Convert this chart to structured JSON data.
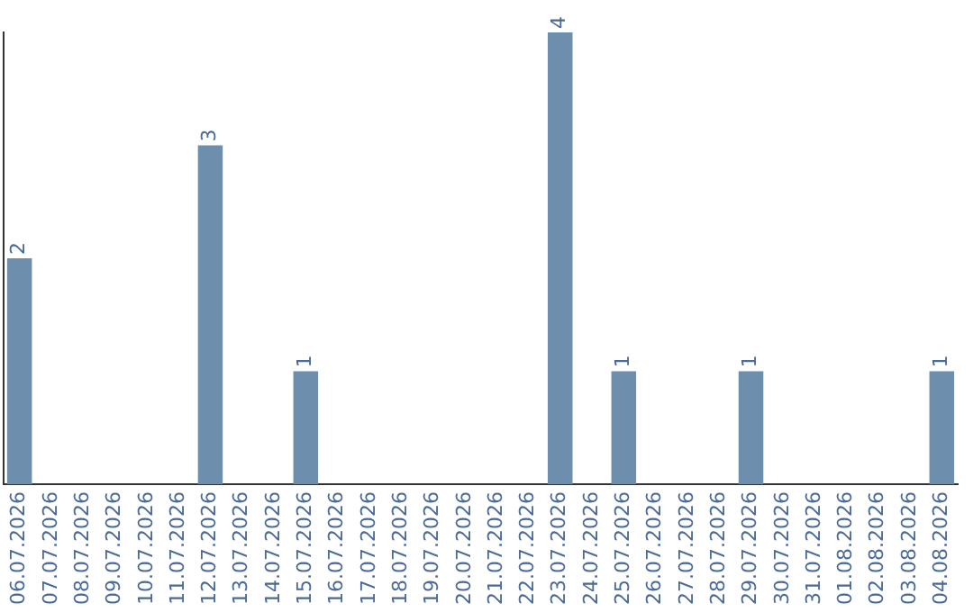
{
  "chart_data": {
    "type": "bar",
    "categories": [
      "06.07.2026",
      "07.07.2026",
      "08.07.2026",
      "09.07.2026",
      "10.07.2026",
      "11.07.2026",
      "12.07.2026",
      "13.07.2026",
      "14.07.2026",
      "15.07.2026",
      "16.07.2026",
      "17.07.2026",
      "18.07.2026",
      "19.07.2026",
      "20.07.2026",
      "21.07.2026",
      "22.07.2026",
      "23.07.2026",
      "24.07.2026",
      "25.07.2026",
      "26.07.2026",
      "27.07.2026",
      "28.07.2026",
      "29.07.2026",
      "30.07.2026",
      "31.07.2026",
      "01.08.2026",
      "02.08.2026",
      "03.08.2026",
      "04.08.2026"
    ],
    "values": [
      2,
      0,
      0,
      0,
      0,
      0,
      3,
      0,
      0,
      1,
      0,
      0,
      0,
      0,
      0,
      0,
      0,
      4,
      0,
      1,
      0,
      0,
      0,
      1,
      0,
      0,
      0,
      0,
      0,
      1
    ],
    "value_labels": [
      "2",
      null,
      null,
      null,
      null,
      null,
      "3",
      null,
      null,
      "1",
      null,
      null,
      null,
      null,
      null,
      null,
      null,
      "4",
      null,
      "1",
      null,
      null,
      null,
      "1",
      null,
      null,
      null,
      null,
      null,
      "1"
    ],
    "color": "#6d8fad",
    "tick_labels": "x",
    "grid": false
  }
}
